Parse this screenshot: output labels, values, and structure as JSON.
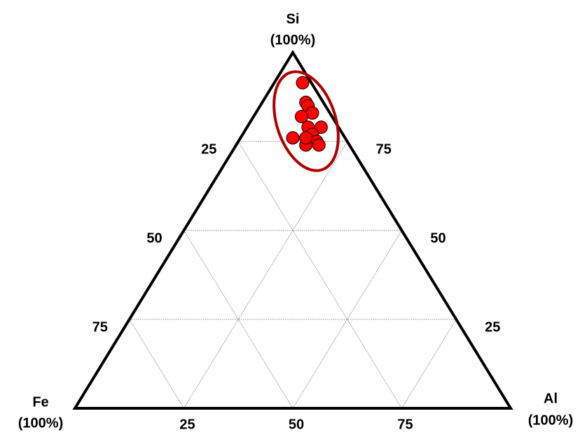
{
  "chart_data": {
    "type": "ternary",
    "vertices": [
      {
        "name": "Si",
        "label": "(100%)"
      },
      {
        "name": "Fe",
        "label": "(100%)"
      },
      {
        "name": "Al",
        "label": "(100%)"
      }
    ],
    "fe_ticks": [
      25,
      50,
      75
    ],
    "si_ticks": [
      25,
      50,
      75
    ],
    "al_ticks": [
      25,
      50,
      75
    ],
    "grid": true,
    "series": [
      {
        "color": "#ff0000",
        "si": [
          91.5,
          86,
          85,
          83,
          82,
          79,
          79,
          76,
          77,
          75,
          74,
          74,
          76
        ],
        "al": [
          6.5,
          10,
          11,
          13,
          11,
          14,
          17,
          12,
          16,
          18,
          19,
          16,
          15
        ],
        "fe": [
          2,
          4,
          4,
          4,
          7,
          7,
          4,
          12,
          7,
          7,
          7,
          10,
          9
        ]
      }
    ]
  }
}
